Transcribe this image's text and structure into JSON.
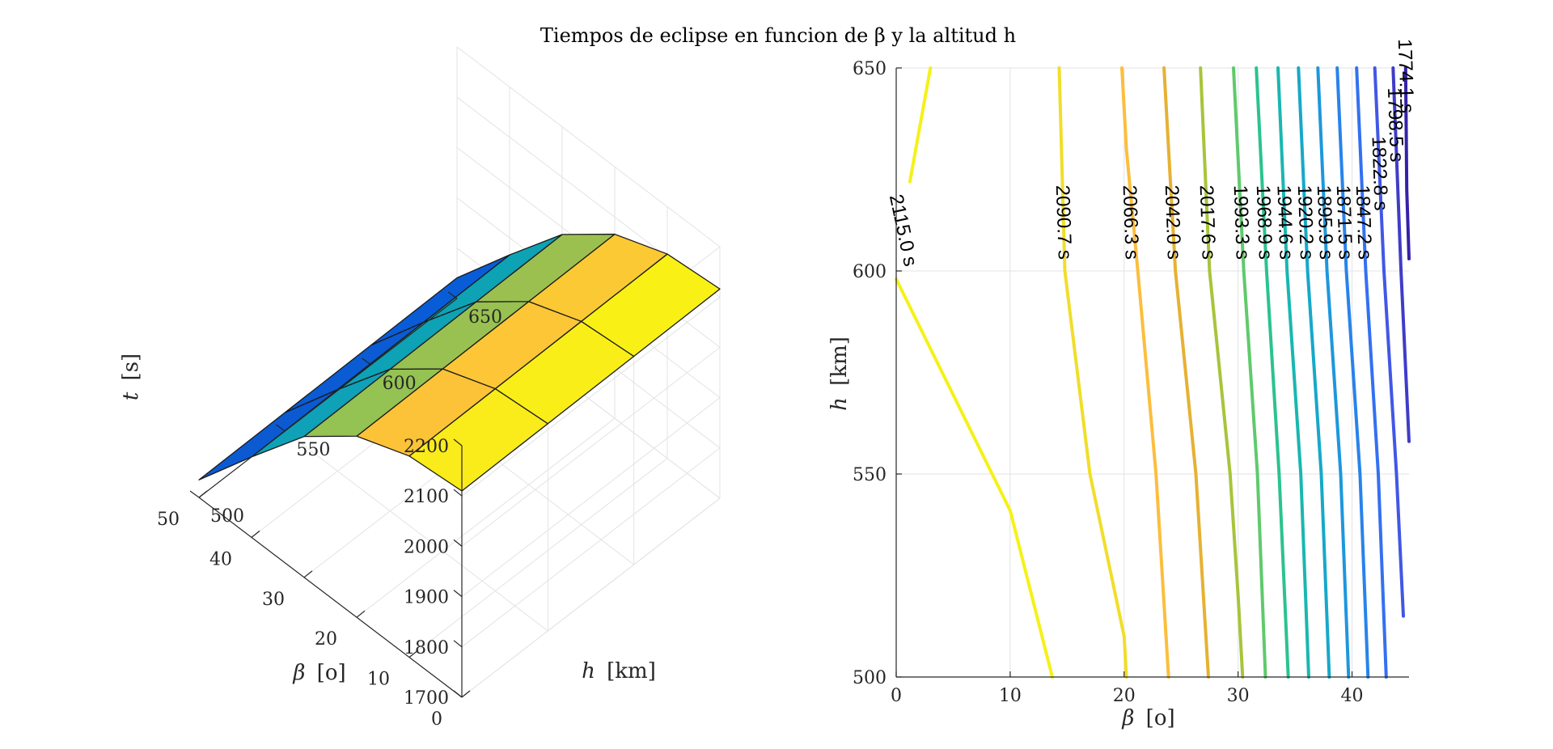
{
  "figure": {
    "title": "Tiempos de eclipse en funcion de β y la altitud h"
  },
  "chart_data": [
    {
      "type": "surface",
      "axes": {
        "x": {
          "label_symbol": "β",
          "label_unit": "[o]",
          "ticks": [
            "0",
            "10",
            "20",
            "30",
            "40",
            "50"
          ],
          "range": [
            0,
            50
          ]
        },
        "y": {
          "label_symbol": "h",
          "label_unit": "[km]",
          "ticks": [
            "500",
            "550",
            "600",
            "650"
          ],
          "range": [
            500,
            650
          ]
        },
        "z": {
          "label_symbol": "t",
          "label_unit": "[s]",
          "ticks": [
            "1700",
            "1800",
            "1900",
            "2000",
            "2100",
            "2200"
          ],
          "range": [
            1700,
            2200
          ]
        }
      },
      "beta": [
        0,
        10,
        20,
        30,
        40,
        50
      ],
      "h": [
        500,
        550,
        600,
        650
      ],
      "t": [
        [
          2110,
          2112,
          2114,
          2116
        ],
        [
          2100,
          2102,
          2104,
          2106
        ],
        [
          2060,
          2062,
          2064,
          2066
        ],
        [
          1980,
          1982,
          1984,
          1986
        ],
        [
          1860,
          1862,
          1864,
          1866
        ],
        [
          1735,
          1737,
          1739,
          1741
        ]
      ],
      "colormap": "parula",
      "grid": true
    },
    {
      "type": "contour",
      "axes": {
        "x": {
          "label_symbol": "β",
          "label_unit": "[o]",
          "ticks": [
            "0",
            "10",
            "20",
            "30",
            "40"
          ],
          "range": [
            0,
            45
          ]
        },
        "y": {
          "label_symbol": "h",
          "label_unit": "[km]",
          "ticks": [
            "500",
            "550",
            "600",
            "650"
          ],
          "range": [
            500,
            650
          ]
        }
      },
      "grid": true,
      "levels": [
        {
          "label": "2115.0 s",
          "color": "#f5f118",
          "points": [
            [
              13.7,
              500
            ],
            [
              10,
              541
            ],
            [
              0,
              598
            ]
          ],
          "points2": [
            [
              1.2,
              622
            ],
            [
              3,
              650
            ]
          ]
        },
        {
          "label": "2090.7 s",
          "color": "#f0de2a",
          "points": [
            [
              20.2,
              500
            ],
            [
              20,
              510
            ],
            [
              17,
              550
            ],
            [
              14.8,
              600
            ],
            [
              14.3,
              650
            ]
          ]
        },
        {
          "label": "2066.3 s",
          "color": "#fbbe3d",
          "points": [
            [
              23.9,
              500
            ],
            [
              22.8,
              550
            ],
            [
              21.2,
              600
            ],
            [
              20.2,
              630
            ],
            [
              19.8,
              650
            ]
          ]
        },
        {
          "label": "2042.0 s",
          "color": "#e6b133",
          "points": [
            [
              27.4,
              500
            ],
            [
              26.3,
              550
            ],
            [
              24.5,
              600
            ],
            [
              23.5,
              650
            ]
          ]
        },
        {
          "label": "2017.6 s",
          "color": "#a8c43b",
          "points": [
            [
              30.4,
              500
            ],
            [
              30,
              520
            ],
            [
              29.3,
              550
            ],
            [
              27.5,
              600
            ],
            [
              26.7,
              650
            ]
          ]
        },
        {
          "label": "1993.3 s",
          "color": "#5fca6c",
          "points": [
            [
              32.4,
              500
            ],
            [
              31.7,
              550
            ],
            [
              30.5,
              600
            ],
            [
              29.6,
              650
            ]
          ]
        },
        {
          "label": "1968.9 s",
          "color": "#2bc38d",
          "points": [
            [
              34.4,
              500
            ],
            [
              33.6,
              550
            ],
            [
              32.5,
              600
            ],
            [
              31.6,
              650
            ]
          ]
        },
        {
          "label": "1944.6 s",
          "color": "#19b7b0",
          "points": [
            [
              36.2,
              500
            ],
            [
              35.5,
              550
            ],
            [
              34.3,
              600
            ],
            [
              33.5,
              650
            ]
          ]
        },
        {
          "label": "1920.2 s",
          "color": "#17a8c9",
          "points": [
            [
              38,
              500
            ],
            [
              37.3,
              550
            ],
            [
              36.1,
              600
            ],
            [
              35.3,
              650
            ]
          ]
        },
        {
          "label": "1895.9 s",
          "color": "#1d97dc",
          "points": [
            [
              39.7,
              500
            ],
            [
              39,
              550
            ],
            [
              37.8,
              600
            ],
            [
              37,
              650
            ]
          ]
        },
        {
          "label": "1871.5 s",
          "color": "#2883ea",
          "points": [
            [
              41.4,
              500
            ],
            [
              40.7,
              550
            ],
            [
              39.5,
              600
            ],
            [
              38.7,
              650
            ]
          ]
        },
        {
          "label": "1847.2 s",
          "color": "#3470f0",
          "points": [
            [
              43,
              500
            ],
            [
              42.3,
              550
            ],
            [
              41.2,
              600
            ],
            [
              40.4,
              650
            ]
          ]
        },
        {
          "label": "1822.8 s",
          "color": "#4257e5",
          "points": [
            [
              44.5,
              515
            ],
            [
              43.9,
              550
            ],
            [
              42.8,
              600
            ],
            [
              42,
              650
            ]
          ]
        },
        {
          "label": "1798.5 s",
          "color": "#3f3cc8",
          "points": [
            [
              45,
              558
            ],
            [
              44.3,
              600
            ],
            [
              43.6,
              650
            ]
          ]
        },
        {
          "label": "1774.1 s",
          "color": "#3521a8",
          "points": [
            [
              45,
              603
            ],
            [
              44.8,
              620
            ],
            [
              44.7,
              650
            ]
          ]
        }
      ]
    }
  ]
}
